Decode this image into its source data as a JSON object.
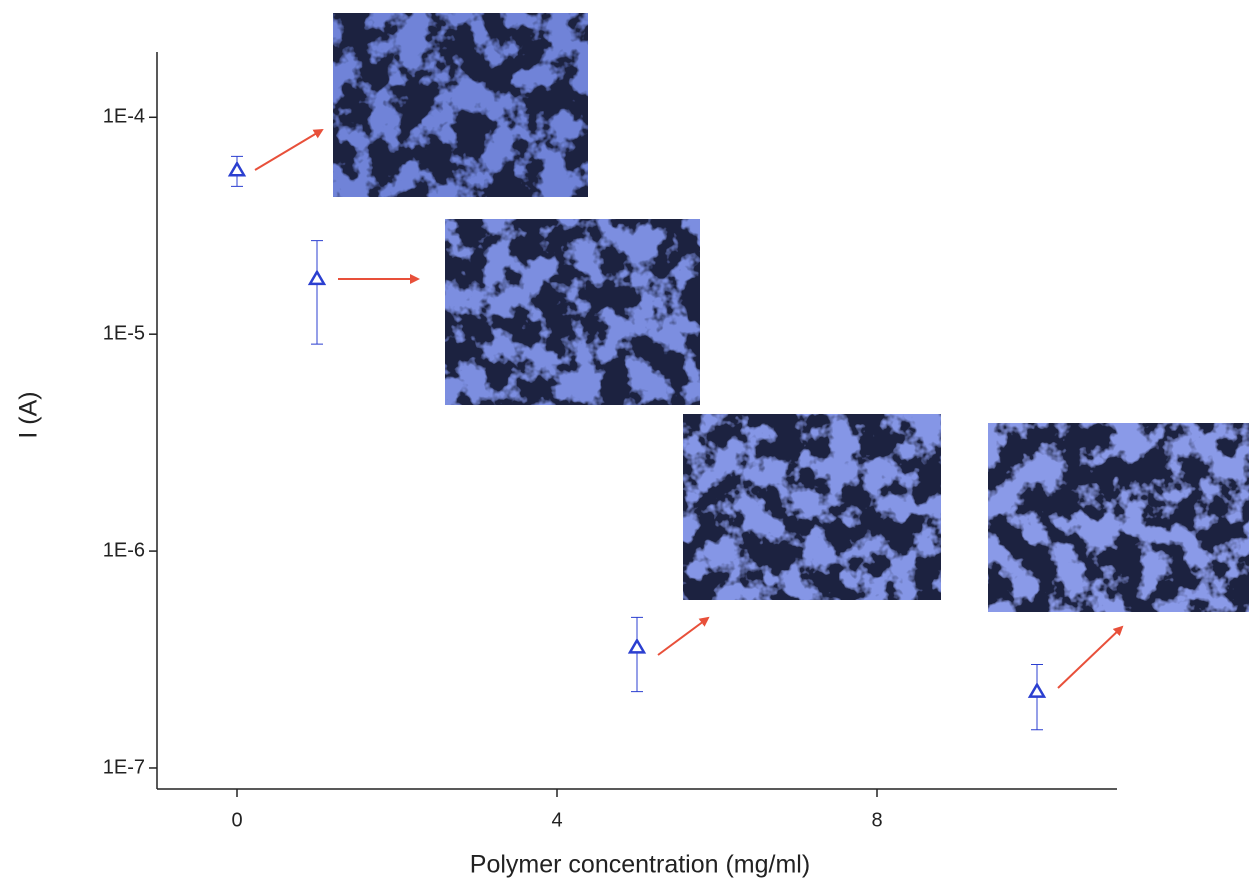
{
  "chart_data": {
    "type": "scatter",
    "xlabel": "Polymer concentration (mg/ml)",
    "ylabel": "I (A)",
    "x": [
      0,
      1,
      5,
      10
    ],
    "values": [
      5.7e-05,
      1.8e-05,
      3.6e-07,
      2.25e-07
    ],
    "errors": [
      9e-06,
      9e-06,
      1.35e-07,
      7.5e-08
    ],
    "color": "#2b3fd0",
    "marker": "triangle-open",
    "xlim": [
      -1,
      11
    ],
    "xticks": [
      0,
      4,
      8
    ],
    "ylim": [
      8e-08,
      0.0002
    ],
    "log_y": true,
    "yticks": [
      {
        "value": 1e-07,
        "label": "1E-7"
      },
      {
        "value": 1e-06,
        "label": "1E-6"
      },
      {
        "value": 1e-05,
        "label": "1E-5"
      },
      {
        "value": 0.0001,
        "label": "1E-4"
      }
    ]
  }
}
